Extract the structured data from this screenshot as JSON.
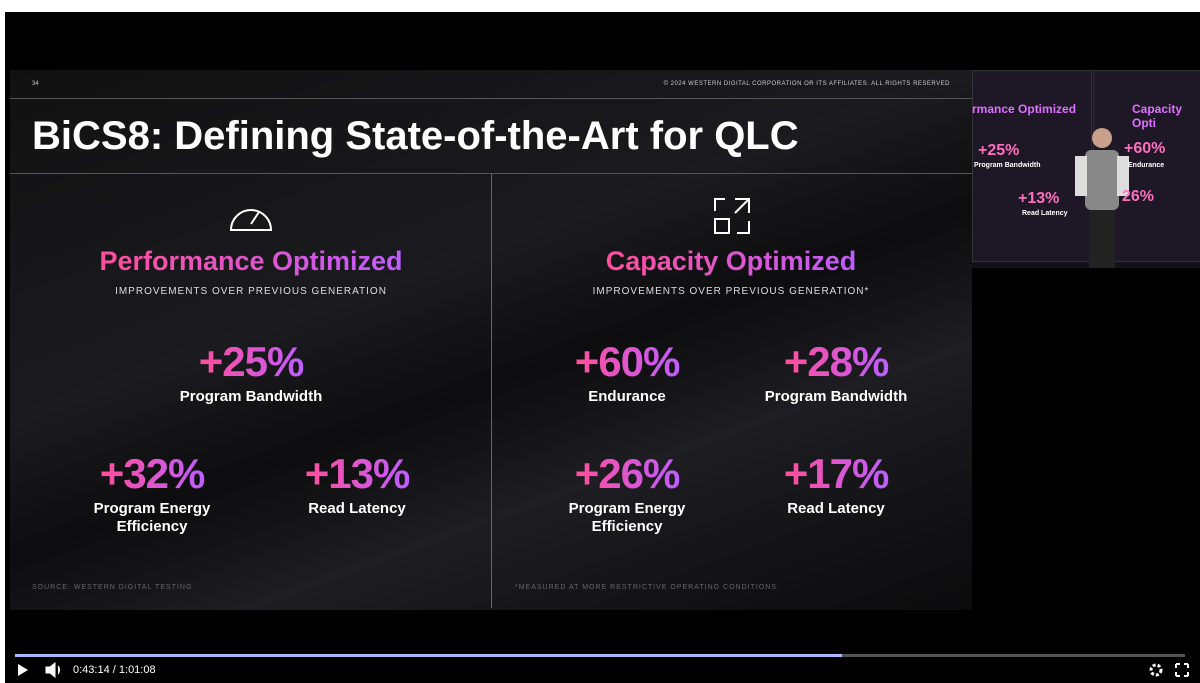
{
  "slide": {
    "page_number": "34",
    "copyright": "© 2024 WESTERN DIGITAL CORPORATION OR ITS AFFILIATES. ALL RIGHTS RESERVED",
    "title": "BiCS8: Defining State-of-the-Art for QLC",
    "panels": [
      {
        "heading": "Performance Optimized",
        "subheading": "IMPROVEMENTS OVER PREVIOUS GENERATION",
        "footnote": "SOURCE: WESTERN DIGITAL TESTING.",
        "metrics": [
          {
            "value": "+25%",
            "label": "Program Bandwidth"
          },
          {
            "value": "+32%",
            "label": "Program Energy Efficiency"
          },
          {
            "value": "+13%",
            "label": "Read Latency"
          }
        ]
      },
      {
        "heading": "Capacity Optimized",
        "subheading": "IMPROVEMENTS OVER PREVIOUS GENERATION*",
        "footnote": "*MEASURED AT MORE RESTRICTIVE OPERATING CONDITIONS.",
        "metrics": [
          {
            "value": "+60%",
            "label": "Endurance"
          },
          {
            "value": "+28%",
            "label": "Program Bandwidth"
          },
          {
            "value": "+26%",
            "label": "Program Energy Efficiency"
          },
          {
            "value": "+17%",
            "label": "Read Latency"
          }
        ]
      }
    ]
  },
  "inset": {
    "texts": [
      "rmance Optimized",
      "Capacity Opti",
      "+25%",
      "Program Bandwidth",
      "+60%",
      "Endurance",
      "+13%",
      "Read Latency",
      "26%"
    ]
  },
  "player": {
    "current_time": "0:43:14",
    "separator": "/",
    "duration": "1:01:08"
  }
}
